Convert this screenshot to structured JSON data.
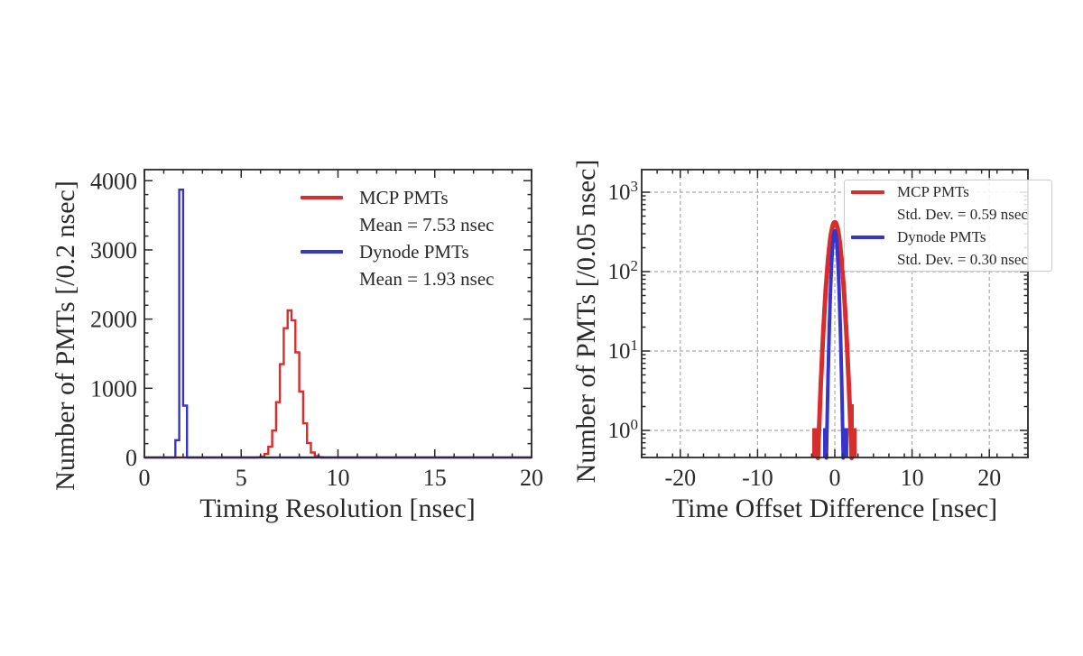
{
  "style": {
    "background": "#ffffff",
    "text_color": "#2a2a2a",
    "frame_color": "#2a2a2a",
    "grid_color": "#ababab",
    "red": "#d62d2d",
    "blue": "#3534cb"
  },
  "chart_data": [
    {
      "type": "bar",
      "subtype": "step-histogram",
      "title": "",
      "xlabel": "Timing Resolution [nsec]",
      "ylabel": "Number of PMTs [/0.2 nsec]",
      "xlim": [
        0,
        20
      ],
      "ylim": [
        0,
        4160
      ],
      "x_major_ticks": [
        0,
        5,
        10,
        15,
        20
      ],
      "x_minor_step": 1,
      "y_major_ticks": [
        0,
        1000,
        2000,
        3000,
        4000
      ],
      "y_minor_step": 200,
      "grid": false,
      "legend_position": "upper right",
      "legend_frame": false,
      "bin_width": 0.2,
      "series": [
        {
          "name": "MCP PMTs",
          "annotation": "Mean = 7.53 nsec",
          "color": "#d62d2d",
          "line_width": 2.4,
          "bins_start": 5.8,
          "counts": [
            3,
            14,
            51,
            155,
            389,
            800,
            1349,
            1869,
            2125,
            1983,
            1519,
            955,
            493,
            209,
            72,
            21,
            5
          ]
        },
        {
          "name": "Dynode PMTs",
          "annotation": "Mean = 1.93 nsec",
          "color": "#3534cb",
          "line_width": 2.4,
          "bins_start": 1.6,
          "counts": [
            250,
            3870,
            750
          ]
        }
      ]
    },
    {
      "type": "line",
      "subtype": "gaussian-histogram-log",
      "title": "",
      "xlabel": "Time Offset Difference [nsec]",
      "ylabel": "Number of PMTs [/0.05 nsec]",
      "xlim": [
        -25,
        25
      ],
      "ylim": [
        0.45,
        1900
      ],
      "yscale": "log",
      "x_major_ticks": [
        -20,
        -10,
        0,
        10,
        20
      ],
      "x_minor_step": 2,
      "y_decade_exponents": [
        0,
        1,
        2,
        3
      ],
      "grid": true,
      "legend_position": "upper right",
      "legend_frame": true,
      "bin_width": 0.05,
      "series": [
        {
          "name": "MCP PMTs",
          "annotation": "Std. Dev. = 0.59 nsec",
          "color": "#d62d2d",
          "line_width": 5,
          "mean": 0,
          "sigma": 0.59,
          "peak": 420,
          "floor_segments": [
            {
              "x1": -2.92,
              "x2": -1.95,
              "count": 1
            },
            {
              "x1": 1.95,
              "x2": 2.45,
              "count": 2
            },
            {
              "x1": 2.45,
              "x2": 2.82,
              "count": 1
            }
          ]
        },
        {
          "name": "Dynode PMTs",
          "annotation": "Std. Dev. = 0.30 nsec",
          "color": "#3534cb",
          "line_width": 4,
          "mean": 0,
          "sigma": 0.3,
          "peak": 325,
          "floor_segments": [
            {
              "x1": -1.52,
              "x2": -1.05,
              "count": 1
            },
            {
              "x1": 1.02,
              "x2": 1.75,
              "count": 1
            }
          ]
        }
      ]
    }
  ]
}
